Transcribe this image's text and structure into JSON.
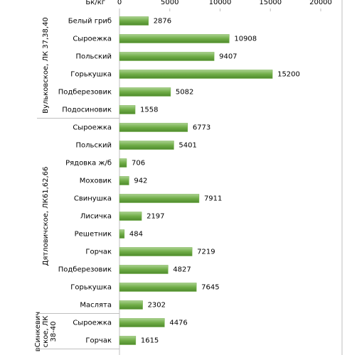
{
  "chart_data": {
    "type": "bar",
    "x_label": "Бк/кг",
    "xlim": [
      0,
      20000
    ],
    "xticks": [
      0,
      5000,
      10000,
      15000,
      20000
    ],
    "color": "#70ad47",
    "groups": [
      {
        "label_lines": [
          "Вульковское, ЛК 37,38,40"
        ],
        "categories": [
          "Белый гриб",
          "Сыроежка",
          "Польский",
          "Горькушка",
          "Подберезовик",
          "Подосиновик"
        ],
        "values": [
          2876,
          10908,
          9407,
          15200,
          5082,
          1558
        ]
      },
      {
        "label_lines": [
          "Дятловичское, ЛК61,62,66"
        ],
        "categories": [
          "Сыроежка",
          "Польский",
          "Рядовка ж/б",
          "Моховик",
          "Свинушка",
          "Лисичка",
          "Решетник",
          "Горчак",
          "Подберезовик",
          "Горькушка",
          "Маслята"
        ],
        "values": [
          6773,
          5401,
          706,
          942,
          7911,
          2197,
          484,
          7219,
          4827,
          7645,
          2302
        ]
      },
      {
        "label_lines": [
          "вСинкевич",
          "ское, ЛК",
          "38-40"
        ],
        "categories": [
          "Сыроежка",
          "Горчак"
        ],
        "values": [
          4476,
          1615
        ]
      }
    ]
  }
}
